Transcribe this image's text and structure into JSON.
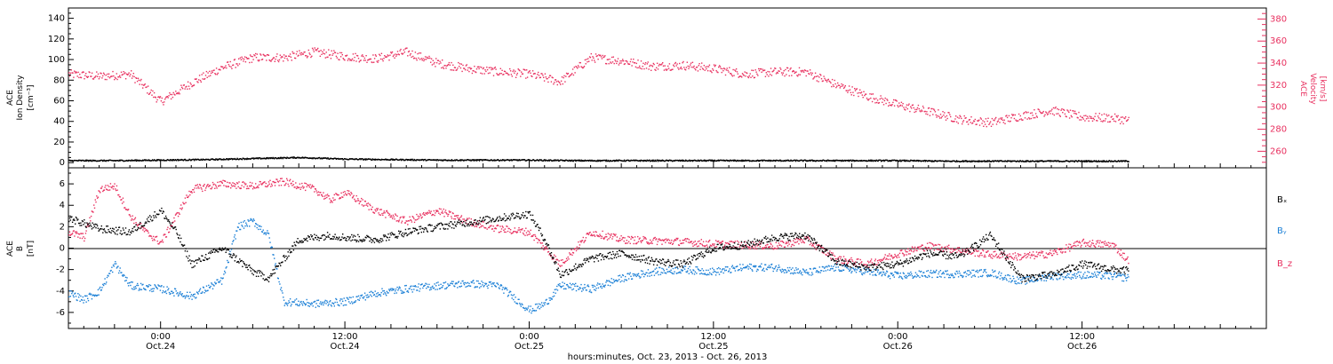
{
  "colors": {
    "density": "#000000",
    "velocity": "#e8305f",
    "bx": "#000000",
    "by": "#1a7fd6",
    "bz": "#e8305f",
    "axis": "#000000"
  },
  "xaxis": {
    "label": "hours:minutes, Oct. 23, 2013 - Oct. 26, 2013",
    "range_hours": [
      0,
      78
    ],
    "ticks": [
      {
        "hour": 6,
        "time": "0:00",
        "date": "Oct.24"
      },
      {
        "hour": 18,
        "time": "12:00",
        "date": "Oct.24"
      },
      {
        "hour": 30,
        "time": "0:00",
        "date": "Oct.25"
      },
      {
        "hour": 42,
        "time": "12:00",
        "date": "Oct.25"
      },
      {
        "hour": 54,
        "time": "0:00",
        "date": "Oct.26"
      },
      {
        "hour": 66,
        "time": "12:00",
        "date": "Oct.26"
      }
    ]
  },
  "panel1": {
    "ylabel_left": [
      "ACE",
      "Ion Density",
      "[cm⁻³]"
    ],
    "ylabel_right": [
      "ACE",
      "Velocity",
      "[km/s]"
    ],
    "left_ylim": [
      -5,
      150
    ],
    "left_ticks": [
      0,
      20,
      40,
      60,
      80,
      100,
      120,
      140
    ],
    "right_ylim": [
      245,
      390
    ],
    "right_ticks": [
      260,
      280,
      300,
      320,
      340,
      360,
      380
    ]
  },
  "panel2": {
    "ylabel": [
      "ACE",
      "B",
      "[nT]"
    ],
    "ylim": [
      -7.5,
      7.5
    ],
    "ticks": [
      -6,
      -4,
      -2,
      0,
      2,
      4,
      6
    ],
    "legend": [
      "Bₓ",
      "Bᵧ",
      "B_z"
    ]
  },
  "chart_data": [
    {
      "type": "scatter",
      "title": "",
      "xlabel": "hours:minutes, Oct. 23, 2013 - Oct. 26, 2013",
      "ylabel": "ACE Ion Density [cm-3] / ACE Velocity [km/s]",
      "x_units": "hours since Oct.23 18:00",
      "series": [
        {
          "name": "Ion Density",
          "axis": "left",
          "x": [
            0,
            3,
            6,
            9,
            12,
            15,
            18,
            21,
            24,
            27,
            30,
            33,
            36,
            39,
            42,
            45,
            48,
            51,
            54,
            57,
            60,
            63,
            66,
            69
          ],
          "values": [
            2,
            2,
            2.5,
            3,
            4,
            5,
            3.5,
            3,
            2.5,
            2.5,
            2.5,
            2,
            2,
            2,
            2,
            2,
            2,
            2,
            2,
            1.5,
            1.5,
            1.5,
            1.5,
            1.5
          ]
        },
        {
          "name": "Velocity",
          "axis": "right",
          "x": [
            0,
            2,
            4,
            6,
            8,
            10,
            12,
            14,
            16,
            18,
            20,
            22,
            24,
            26,
            28,
            30,
            32,
            34,
            36,
            38,
            40,
            42,
            44,
            46,
            48,
            50,
            52,
            54,
            56,
            58,
            60,
            62,
            64,
            66,
            68,
            69
          ],
          "values": [
            330,
            328,
            330,
            305,
            322,
            336,
            345,
            345,
            350,
            346,
            344,
            350,
            340,
            335,
            332,
            330,
            323,
            345,
            342,
            337,
            338,
            335,
            330,
            332,
            332,
            320,
            310,
            302,
            296,
            289,
            286,
            292,
            297,
            291,
            290,
            288
          ]
        }
      ]
    },
    {
      "type": "scatter",
      "title": "",
      "xlabel": "hours:minutes, Oct. 23, 2013 - Oct. 26, 2013",
      "ylabel": "ACE B [nT]",
      "x_units": "hours since Oct.23 18:00",
      "series": [
        {
          "name": "Bₓ",
          "x": [
            0,
            2,
            4,
            6,
            7,
            8,
            10,
            12,
            13,
            15,
            17,
            18,
            20,
            22,
            24,
            26,
            28,
            30,
            31,
            32,
            34,
            36,
            38,
            40,
            42,
            44,
            46,
            48,
            50,
            52,
            54,
            56,
            58,
            60,
            62,
            64,
            66,
            68,
            69
          ],
          "values": [
            2.8,
            1.8,
            1.5,
            3.5,
            1.5,
            -1.5,
            0,
            -2.2,
            -2.8,
            0.8,
            1.2,
            1,
            0.8,
            1.5,
            2,
            2.4,
            2.8,
            3.2,
            0.8,
            -2.5,
            -1,
            -0.5,
            -1.2,
            -1.5,
            0,
            0.3,
            1,
            1.2,
            -1.3,
            -1.8,
            -1.5,
            -0.5,
            -0.8,
            1.2,
            -2.8,
            -2.5,
            -1.5,
            -2,
            -2.1
          ]
        },
        {
          "name": "Bᵧ",
          "x": [
            0,
            1,
            2,
            3,
            4,
            6,
            8,
            10,
            11,
            12,
            13,
            14,
            16,
            18,
            20,
            22,
            24,
            26,
            28,
            30,
            31,
            32,
            34,
            36,
            38,
            40,
            42,
            44,
            46,
            48,
            50,
            52,
            54,
            56,
            58,
            60,
            62,
            64,
            66,
            68,
            69
          ],
          "values": [
            -4.2,
            -4.8,
            -4,
            -1.5,
            -3.5,
            -3.8,
            -4.5,
            -3,
            2,
            2.5,
            1.2,
            -5,
            -5.2,
            -5,
            -4.2,
            -3.8,
            -3.5,
            -3.3,
            -3.5,
            -5.8,
            -5.2,
            -3.5,
            -3.8,
            -2.8,
            -2.2,
            -2,
            -2.2,
            -1.8,
            -1.8,
            -2.3,
            -1.8,
            -2.2,
            -2.6,
            -2.4,
            -2.4,
            -2.3,
            -3.1,
            -2.6,
            -2.5,
            -2.6,
            -2.8
          ]
        },
        {
          "name": "B_z",
          "x": [
            0,
            1,
            2,
            3,
            4,
            5,
            6,
            7,
            8,
            10,
            12,
            14,
            16,
            17,
            18,
            20,
            22,
            24,
            26,
            28,
            30,
            32,
            34,
            36,
            38,
            40,
            42,
            44,
            46,
            48,
            50,
            52,
            54,
            56,
            58,
            60,
            62,
            64,
            66,
            68,
            69
          ],
          "values": [
            1.5,
            1,
            5.5,
            5.8,
            3,
            1.5,
            0.5,
            3,
            5.5,
            6,
            5.8,
            6.2,
            5.5,
            4.5,
            5.2,
            3.5,
            2.5,
            3.5,
            2.5,
            1.8,
            1.5,
            -1.5,
            1.5,
            0.8,
            0.7,
            0.6,
            0.4,
            0.3,
            0.2,
            0.8,
            -1,
            -1.5,
            -0.5,
            0.2,
            -0.2,
            -0.6,
            -0.8,
            -0.5,
            0.5,
            0.3,
            -1.2
          ]
        }
      ]
    }
  ]
}
